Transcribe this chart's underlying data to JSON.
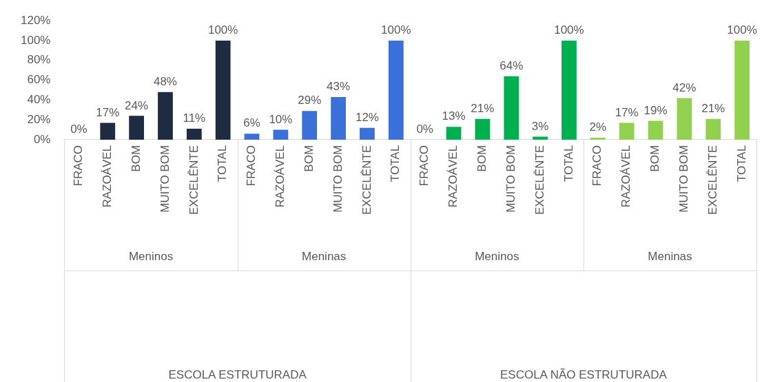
{
  "chart_data": {
    "type": "bar",
    "categories": [
      "FRACO",
      "RAZOÁVEL",
      "BOM",
      "MUITO BOM",
      "EXCELÊNTE",
      "TOTAL",
      "FRACO",
      "RAZOÁVEL",
      "BOM",
      "MUITO BOM",
      "EXCELÊNTE",
      "TOTAL",
      "FRACO",
      "RAZOÁVEL",
      "BOM",
      "MUITO BOM",
      "EXCELÊNTE",
      "TOTAL",
      "FRACO",
      "RAZOÁVEL",
      "BOM",
      "MUITO BOM",
      "EXCELÊNTE",
      "TOTAL"
    ],
    "values": [
      0,
      17,
      24,
      48,
      11,
      100,
      6,
      10,
      29,
      43,
      12,
      100,
      0,
      13,
      21,
      64,
      3,
      100,
      2,
      17,
      19,
      42,
      21,
      100
    ],
    "value_labels": [
      "0%",
      "17%",
      "24%",
      "48%",
      "11%",
      "100%",
      "6%",
      "10%",
      "29%",
      "43%",
      "12%",
      "100%",
      "0%",
      "13%",
      "21%",
      "64%",
      "3%",
      "100%",
      "2%",
      "17%",
      "19%",
      "42%",
      "21%",
      "100%"
    ],
    "colors": [
      "#1f2b40",
      "#1f2b40",
      "#1f2b40",
      "#1f2b40",
      "#1f2b40",
      "#1f2b40",
      "#3a70d8",
      "#3a70d8",
      "#3a70d8",
      "#3a70d8",
      "#3a70d8",
      "#3a70d8",
      "#00b050",
      "#00b050",
      "#00b050",
      "#00b050",
      "#00b050",
      "#00b050",
      "#92d050",
      "#92d050",
      "#92d050",
      "#92d050",
      "#92d050",
      "#92d050"
    ],
    "ylim": [
      0,
      120
    ],
    "yticks": [
      {
        "value": 0,
        "label": "0%"
      },
      {
        "value": 20,
        "label": "20%"
      },
      {
        "value": 40,
        "label": "40%"
      },
      {
        "value": 60,
        "label": "60%"
      },
      {
        "value": 80,
        "label": "80%"
      },
      {
        "value": 100,
        "label": "100%"
      },
      {
        "value": 120,
        "label": "120%"
      }
    ],
    "annotations": [
      "Meninos",
      "Meninas",
      "Meninos",
      "Meninas",
      "ESCOLA ESTRUTURADA",
      "ESCOLA NÃO ESTRUTURADA"
    ],
    "grid": false,
    "legend": false
  }
}
